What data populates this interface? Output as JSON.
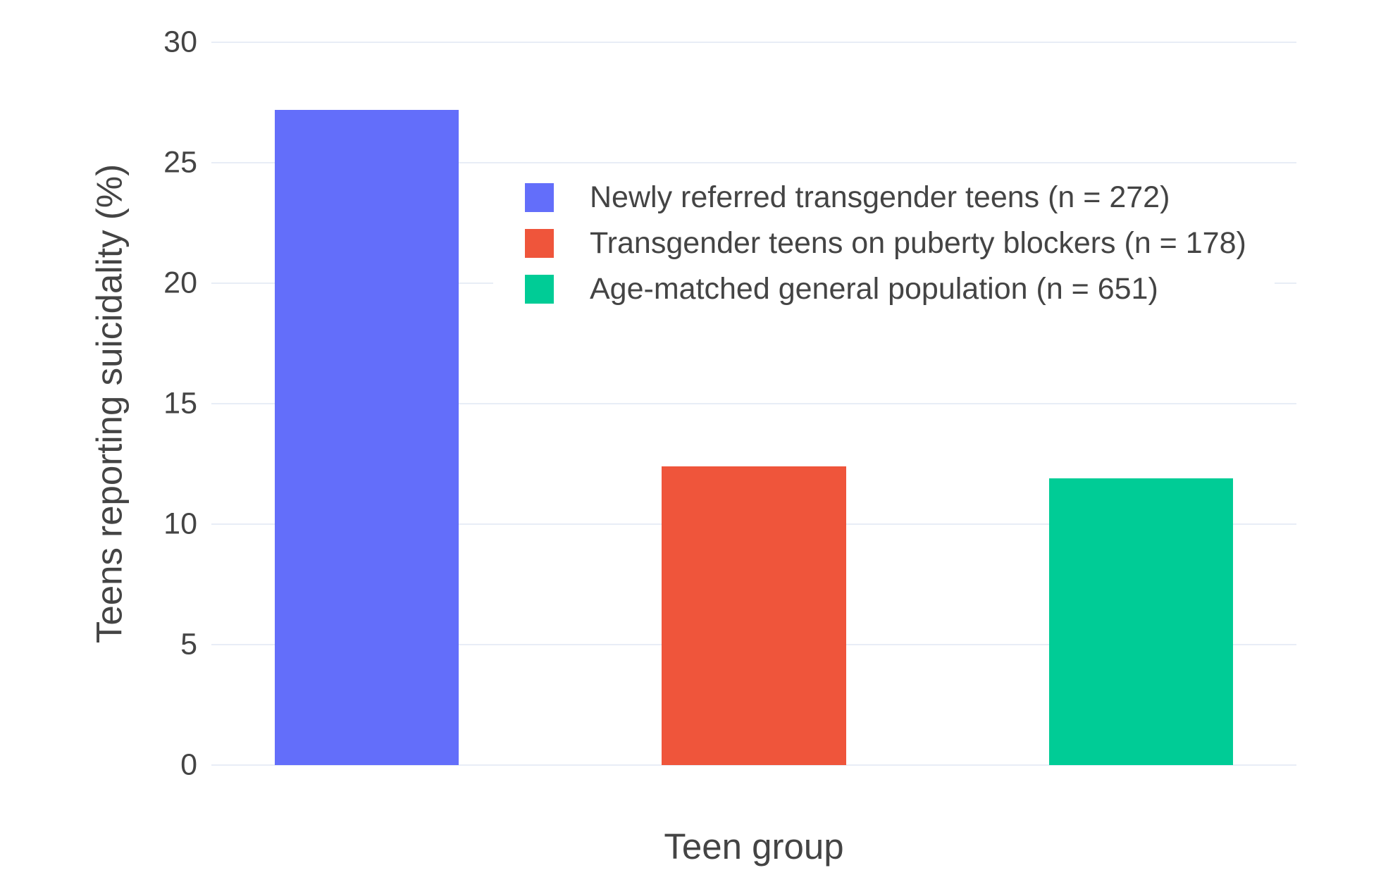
{
  "style": {
    "background": "#ffffff",
    "text_color": "#444444",
    "grid_color": "#e8edf6"
  },
  "chart_data": {
    "type": "bar",
    "title": "",
    "xlabel": "Teen group",
    "ylabel": "Teens reporting suicidality (%)",
    "categories": [
      "Newly referred transgender teens (n = 272)",
      "Transgender teens on puberty blockers (n = 178)",
      "Age-matched general population (n = 651)"
    ],
    "values": [
      27.2,
      12.4,
      11.9
    ],
    "colors": [
      "#636EFA",
      "#EF553B",
      "#00CC96"
    ],
    "ylim": [
      0,
      30
    ],
    "yticks": [
      0,
      5,
      10,
      15,
      20,
      25,
      30
    ],
    "grid": true,
    "legend_position": "inside-upper-center",
    "legend": [
      {
        "label": "Newly referred transgender teens (n = 272)",
        "color": "#636EFA"
      },
      {
        "label": "Transgender teens on puberty blockers (n = 178)",
        "color": "#EF553B"
      },
      {
        "label": "Age-matched general population (n = 651)",
        "color": "#00CC96"
      }
    ]
  }
}
